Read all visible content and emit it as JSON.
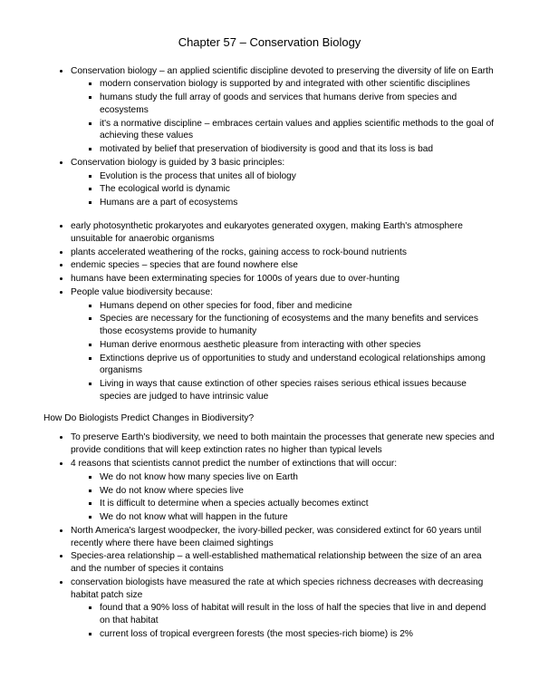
{
  "title": "Chapter 57 – Conservation Biology",
  "section1": [
    {
      "text": "Conservation biology – an applied scientific discipline devoted to preserving the diversity of life on Earth",
      "sub": [
        "modern conservation biology is supported by and integrated with other scientific disciplines",
        "humans study the full array of goods and services  that humans derive from species and ecosystems",
        "it's a normative discipline – embraces certain values and applies scientific methods to the goal of achieving these values",
        "motivated by belief that preservation of biodiversity is good and that its loss is bad"
      ]
    },
    {
      "text": "Conservation biology is guided by 3 basic principles:",
      "sub": [
        "Evolution is the process that unites all of biology",
        "The ecological world is dynamic",
        "Humans are a part of ecosystems"
      ]
    }
  ],
  "section2": [
    {
      "text": "early photosynthetic prokaryotes and eukaryotes generated oxygen, making Earth's atmosphere unsuitable for anaerobic organisms"
    },
    {
      "text": "plants accelerated weathering of the rocks, gaining access to rock-bound nutrients"
    },
    {
      "text": "endemic species – species that are found nowhere else"
    },
    {
      "text": "humans have been exterminating species for 1000s of years due to over-hunting"
    },
    {
      "text": "People value biodiversity because:",
      "sub": [
        "Humans depend on other species for food, fiber and medicine",
        "Species are necessary for the functioning of ecosystems and the many benefits and services those ecosystems provide to humanity",
        "Human derive enormous aesthetic pleasure from interacting with other species",
        "Extinctions deprive us of opportunities to study and understand ecological relationships among organisms",
        "Living in ways that cause extinction of other species raises serious ethical issues because species are judged to have intrinsic value"
      ]
    }
  ],
  "heading2": "How Do Biologists Predict Changes in Biodiversity?",
  "section3": [
    {
      "text": "To preserve Earth's biodiversity, we need to both maintain the processes that generate new species and provide conditions that will keep extinction rates no higher than typical levels"
    },
    {
      "text": "4 reasons that scientists cannot predict the number of extinctions that will occur:",
      "sub": [
        "We do not know how many species live on Earth",
        "We do not know where species live",
        "It is difficult to determine when a species actually becomes extinct",
        "We do not know what will happen in the future"
      ]
    },
    {
      "text": "North America's largest woodpecker, the ivory-billed pecker, was considered extinct for 60 years until recently where there have been claimed sightings"
    },
    {
      "text": "Species-area relationship – a well-established mathematical relationship between the size of an area and the number of species it contains"
    },
    {
      "text": "conservation biologists have measured the rate at which species richness decreases with decreasing habitat patch size",
      "sub": [
        "found that a 90% loss of habitat will result in the loss of half the species that live in and depend on that habitat",
        "current loss of tropical evergreen forests (the most species-rich biome) is 2%"
      ]
    }
  ]
}
